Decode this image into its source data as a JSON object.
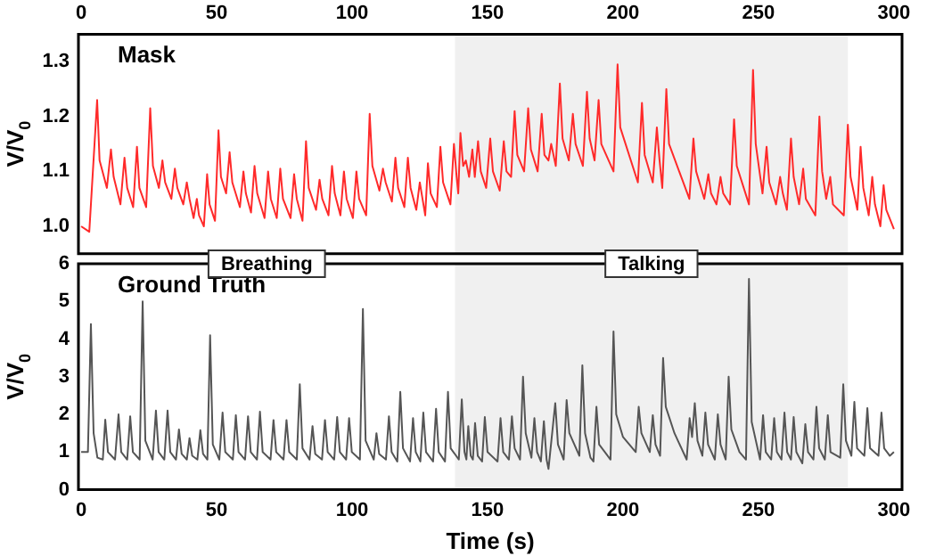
{
  "chart_data": [
    {
      "type": "line",
      "title": "Mask",
      "ylabel": "V/V$_{0}$",
      "xlim": [
        -1,
        303
      ],
      "xticks": [
        0,
        50,
        100,
        150,
        200,
        250,
        300
      ],
      "ylim": [
        0.95,
        1.35
      ],
      "yticks": [
        {
          "value": 1,
          "label": "1.0"
        },
        1.1,
        1.2,
        1.3
      ],
      "bands": [
        {
          "axis": "x",
          "from": 138,
          "to": 283,
          "color": "#f0f0f0"
        }
      ],
      "series": [
        {
          "color": "#ff2a2a",
          "x": [
            0,
            3,
            5.9,
            6.8,
            9.5,
            11,
            12,
            14.5,
            16,
            17,
            19.2,
            20.6,
            21.5,
            24,
            25.5,
            26.5,
            28.7,
            30,
            31,
            33.3,
            34.6,
            35.5,
            37.7,
            39,
            40,
            41.5,
            42.7,
            43.5,
            45.3,
            46.5,
            47.4,
            49.4,
            50.7,
            51.6,
            53.5,
            54.8,
            55.8,
            58.6,
            59.9,
            60.8,
            62.7,
            64,
            65,
            67.7,
            69,
            70,
            72.2,
            73.5,
            74.5,
            77.3,
            78.6,
            79.6,
            81.7,
            83,
            84,
            86.7,
            88,
            89,
            91.3,
            92.6,
            93.6,
            95.7,
            97,
            98,
            100.3,
            101.6,
            102.6,
            105.2,
            106.5,
            107.5,
            110.1,
            111.4,
            112.4,
            114.7,
            116,
            117,
            119.3,
            120.6,
            121.6,
            123.7,
            125,
            126,
            127,
            128,
            129,
            131.3,
            132.6,
            133.6,
            136.3,
            137.6,
            138.6,
            139.2,
            140,
            141,
            142,
            143.2,
            144.4,
            145.3,
            146.5,
            147.5,
            149.5,
            151,
            152,
            154.5,
            156,
            157,
            158.7,
            160,
            161,
            163.5,
            165,
            166,
            168.5,
            170,
            171,
            172.5,
            173.5,
            175.2,
            176.7,
            177.7,
            180,
            181.5,
            182.5,
            185.2,
            186.7,
            187.7,
            189.5,
            191,
            192,
            196.5,
            198,
            199,
            205.5,
            207,
            208,
            211,
            212.5,
            213.5,
            214.5,
            216,
            217,
            224.5,
            226,
            227,
            230,
            231.5,
            232.5,
            234.5,
            236,
            237,
            239.5,
            241,
            242,
            246.5,
            248,
            249,
            251.5,
            253,
            254,
            256.5,
            258,
            259,
            260.5,
            262,
            263,
            265,
            266.5,
            267.5,
            271,
            272.5,
            273.5,
            275,
            276.5,
            277.5,
            281.5,
            283,
            284,
            286.5,
            287.7,
            288.7,
            290.7,
            292,
            293,
            295,
            296.2,
            297.2,
            300
          ],
          "values": [
            1.0,
            0.99,
            1.23,
            1.12,
            1.07,
            1.14,
            1.09,
            1.04,
            1.125,
            1.07,
            1.035,
            1.145,
            1.07,
            1.035,
            1.215,
            1.11,
            1.07,
            1.12,
            1.08,
            1.05,
            1.105,
            1.07,
            1.04,
            1.08,
            1.05,
            1.015,
            1.05,
            1.02,
            1.0,
            1.095,
            1.04,
            1.01,
            1.175,
            1.09,
            1.06,
            1.135,
            1.08,
            1.035,
            1.1,
            1.06,
            1.025,
            1.11,
            1.06,
            1.015,
            1.1,
            1.05,
            1.015,
            1.105,
            1.05,
            1.015,
            1.095,
            1.05,
            1.01,
            1.155,
            1.07,
            1.03,
            1.085,
            1.05,
            1.02,
            1.11,
            1.06,
            1.02,
            1.1,
            1.05,
            1.015,
            1.1,
            1.05,
            1.02,
            1.205,
            1.11,
            1.065,
            1.105,
            1.08,
            1.045,
            1.125,
            1.07,
            1.035,
            1.125,
            1.07,
            1.03,
            1.08,
            1.05,
            1.02,
            1.115,
            1.06,
            1.035,
            1.145,
            1.08,
            1.04,
            1.15,
            1.09,
            1.06,
            1.17,
            1.11,
            1.12,
            1.09,
            1.14,
            1.09,
            1.155,
            1.1,
            1.07,
            1.16,
            1.1,
            1.065,
            1.155,
            1.1,
            1.09,
            1.21,
            1.13,
            1.1,
            1.215,
            1.14,
            1.1,
            1.205,
            1.13,
            1.12,
            1.15,
            1.11,
            1.26,
            1.16,
            1.12,
            1.205,
            1.15,
            1.11,
            1.245,
            1.16,
            1.12,
            1.23,
            1.15,
            1.1,
            1.295,
            1.18,
            1.08,
            1.225,
            1.13,
            1.08,
            1.18,
            1.12,
            1.07,
            1.25,
            1.15,
            1.05,
            1.16,
            1.1,
            1.05,
            1.095,
            1.06,
            1.04,
            1.09,
            1.06,
            1.04,
            1.195,
            1.11,
            1.04,
            1.285,
            1.15,
            1.06,
            1.145,
            1.08,
            1.04,
            1.09,
            1.06,
            1.03,
            1.16,
            1.09,
            1.04,
            1.105,
            1.05,
            1.02,
            1.2,
            1.1,
            1.05,
            1.09,
            1.04,
            1.02,
            1.185,
            1.09,
            1.03,
            1.145,
            1.07,
            1.02,
            1.09,
            1.04,
            1.0,
            1.075,
            1.03,
            0.995
          ]
        }
      ]
    },
    {
      "type": "line",
      "title": "Ground Truth",
      "ylabel": "V/V$_{0}$",
      "xlabel": "Time (s)",
      "xlim": [
        -1,
        303
      ],
      "xticks": [
        0,
        50,
        100,
        150,
        200,
        250,
        300
      ],
      "ylim": [
        0,
        6
      ],
      "yticks": [
        0,
        1,
        2,
        3,
        4,
        5,
        6
      ],
      "bands": [
        {
          "axis": "x",
          "from": 138,
          "to": 283,
          "color": "#f0f0f0",
          "label": "Talking"
        }
      ],
      "annotations": [
        "Breathing"
      ],
      "series": [
        {
          "color": "#555555",
          "x": [
            0,
            2.5,
            3.6,
            4.6,
            6,
            8,
            8.9,
            9.9,
            12.5,
            13.8,
            14.8,
            17,
            18.1,
            19.1,
            21.6,
            22.7,
            23.7,
            26.4,
            27.6,
            28.6,
            30.7,
            31.9,
            32.9,
            35,
            36.1,
            37.1,
            39,
            40,
            41,
            42.9,
            44,
            45,
            46.6,
            47.6,
            48.6,
            51,
            52.2,
            53.2,
            56,
            57.1,
            58.1,
            60.5,
            61.6,
            62.6,
            64.9,
            66,
            67,
            69.9,
            71,
            72,
            74.7,
            75.8,
            76.8,
            79.6,
            80.7,
            81.7,
            84.3,
            85.4,
            86.4,
            88.9,
            90,
            91,
            93.4,
            94.5,
            95.5,
            97.8,
            98.9,
            99.9,
            102.9,
            104,
            105,
            108,
            109,
            110,
            112.5,
            113.6,
            114.6,
            116.7,
            117.8,
            118.8,
            121.4,
            122.5,
            123.5,
            125.2,
            126.3,
            127.3,
            129.9,
            131,
            132,
            134.3,
            135.4,
            136.4,
            139.4,
            140.5,
            141.5,
            142.2,
            142.9,
            143.8,
            144.6,
            145.4,
            146.4,
            148,
            149,
            150,
            153.7,
            154.8,
            155.8,
            157.9,
            159,
            160,
            162,
            163.1,
            164.1,
            166.2,
            167.3,
            168.3,
            169.7,
            170.8,
            171.8,
            172.5,
            175,
            176,
            178.1,
            179.2,
            180.2,
            183.9,
            185,
            186,
            188,
            189.1,
            190.2,
            191.2,
            195.4,
            196.5,
            197.5,
            200,
            204.7,
            205.8,
            206.8,
            209.9,
            211,
            212,
            213.7,
            214.8,
            215.8,
            219,
            223.5,
            224.6,
            225.5,
            226.5,
            227.5,
            229.3,
            230.4,
            231.4,
            233.9,
            235,
            236,
            237.9,
            239,
            240,
            243,
            245.4,
            246.5,
            247.5,
            250.6,
            251.7,
            252.7,
            254.7,
            255.8,
            256.8,
            258.5,
            259.6,
            260.6,
            262,
            263,
            264,
            266.2,
            267.3,
            268.3,
            270.3,
            271.4,
            272.4,
            274.5,
            275.6,
            276.6,
            280.2,
            281.3,
            282.3,
            284.3,
            285.4,
            286.4,
            289.1,
            290.2,
            291.2,
            294.3,
            295.4,
            296.4,
            298.5,
            300
          ],
          "values": [
            1.0,
            1.0,
            4.4,
            1.5,
            0.85,
            0.8,
            1.86,
            1.0,
            0.8,
            2.0,
            1.0,
            0.8,
            1.95,
            1.0,
            0.8,
            5.0,
            1.3,
            0.8,
            2.1,
            1.0,
            0.8,
            2.1,
            1.0,
            0.8,
            1.6,
            0.95,
            0.8,
            1.37,
            0.9,
            0.8,
            1.58,
            0.95,
            0.8,
            4.1,
            1.2,
            0.8,
            2.05,
            1.0,
            0.8,
            1.98,
            1.0,
            0.8,
            1.95,
            1.0,
            0.8,
            2.07,
            1.0,
            0.8,
            1.85,
            1.0,
            0.8,
            1.85,
            1.0,
            0.8,
            2.8,
            1.1,
            0.8,
            1.69,
            0.95,
            0.8,
            1.85,
            1.0,
            0.8,
            1.93,
            1.0,
            0.8,
            1.9,
            1.0,
            0.8,
            4.8,
            1.3,
            0.8,
            1.5,
            0.95,
            0.8,
            1.95,
            1.0,
            0.75,
            2.6,
            1.1,
            0.75,
            1.9,
            1.0,
            0.75,
            2.05,
            1.0,
            0.75,
            2.15,
            1.0,
            0.75,
            2.6,
            1.1,
            0.8,
            2.4,
            1.0,
            0.8,
            1.69,
            0.9,
            0.8,
            1.77,
            0.9,
            0.75,
            1.93,
            1.0,
            0.75,
            1.9,
            1.0,
            0.8,
            1.95,
            1.1,
            0.8,
            3.0,
            1.5,
            0.85,
            1.9,
            1.0,
            0.75,
            1.82,
            0.8,
            0.55,
            2.3,
            1.2,
            0.8,
            2.38,
            1.5,
            0.9,
            3.3,
            1.5,
            0.85,
            0.75,
            2.2,
            1.2,
            0.8,
            4.2,
            2.0,
            1.4,
            1.0,
            2.2,
            1.5,
            1.0,
            1.98,
            1.2,
            0.9,
            3.5,
            2.2,
            1.5,
            0.8,
            1.9,
            1.4,
            2.3,
            1.3,
            0.9,
            2.05,
            1.2,
            0.8,
            2.0,
            1.2,
            0.8,
            3.0,
            1.6,
            1.0,
            0.8,
            5.6,
            1.8,
            0.8,
            1.98,
            1.0,
            0.8,
            1.9,
            1.0,
            0.8,
            2.05,
            1.0,
            0.8,
            1.93,
            1.0,
            0.7,
            1.74,
            1.0,
            0.8,
            2.2,
            1.1,
            0.8,
            1.98,
            1.0,
            0.85,
            2.8,
            1.3,
            0.9,
            2.33,
            1.1,
            0.9,
            2.17,
            1.1,
            0.9,
            2.05,
            1.1,
            0.9,
            1.0
          ]
        }
      ]
    }
  ]
}
